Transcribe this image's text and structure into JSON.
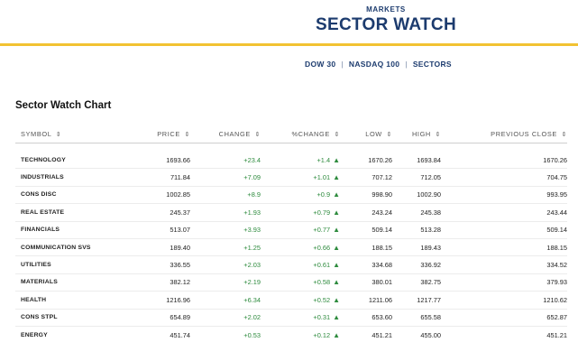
{
  "header": {
    "kicker": "MARKETS",
    "title": "SECTOR WATCH",
    "nav": [
      "DOW 30",
      "NASDAQ 100",
      "SECTORS"
    ],
    "nav_separator": "|"
  },
  "section_title": "Sector Watch Chart",
  "table": {
    "sort_icon": "⇕",
    "columns": [
      "SYMBOL",
      "PRICE",
      "CHANGE",
      "%CHANGE",
      "LOW",
      "HIGH",
      "PREVIOUS CLOSE"
    ],
    "rows": [
      {
        "symbol": "TECHNOLOGY",
        "price": "1693.66",
        "change": "+23.4",
        "pct": "+1.4",
        "low": "1670.26",
        "high": "1693.84",
        "prev": "1670.26"
      },
      {
        "symbol": "INDUSTRIALS",
        "price": "711.84",
        "change": "+7.09",
        "pct": "+1.01",
        "low": "707.12",
        "high": "712.05",
        "prev": "704.75"
      },
      {
        "symbol": "CONS DISC",
        "price": "1002.85",
        "change": "+8.9",
        "pct": "+0.9",
        "low": "998.90",
        "high": "1002.90",
        "prev": "993.95"
      },
      {
        "symbol": "REAL ESTATE",
        "price": "245.37",
        "change": "+1.93",
        "pct": "+0.79",
        "low": "243.24",
        "high": "245.38",
        "prev": "243.44"
      },
      {
        "symbol": "FINANCIALS",
        "price": "513.07",
        "change": "+3.93",
        "pct": "+0.77",
        "low": "509.14",
        "high": "513.28",
        "prev": "509.14"
      },
      {
        "symbol": "COMMUNICATION SVS",
        "price": "189.40",
        "change": "+1.25",
        "pct": "+0.66",
        "low": "188.15",
        "high": "189.43",
        "prev": "188.15"
      },
      {
        "symbol": "UTILITIES",
        "price": "336.55",
        "change": "+2.03",
        "pct": "+0.61",
        "low": "334.68",
        "high": "336.92",
        "prev": "334.52"
      },
      {
        "symbol": "MATERIALS",
        "price": "382.12",
        "change": "+2.19",
        "pct": "+0.58",
        "low": "380.01",
        "high": "382.75",
        "prev": "379.93"
      },
      {
        "symbol": "HEALTH",
        "price": "1216.96",
        "change": "+6.34",
        "pct": "+0.52",
        "low": "1211.06",
        "high": "1217.77",
        "prev": "1210.62"
      },
      {
        "symbol": "CONS STPL",
        "price": "654.89",
        "change": "+2.02",
        "pct": "+0.31",
        "low": "653.60",
        "high": "655.58",
        "prev": "652.87"
      },
      {
        "symbol": "ENERGY",
        "price": "451.74",
        "change": "+0.53",
        "pct": "+0.12",
        "low": "451.21",
        "high": "455.00",
        "prev": "451.21"
      }
    ],
    "up_icon": "▲",
    "positive_color": "#2e8b3e"
  },
  "colors": {
    "brand_navy": "#1c3b6e",
    "gold_accent": "#f2c232"
  }
}
